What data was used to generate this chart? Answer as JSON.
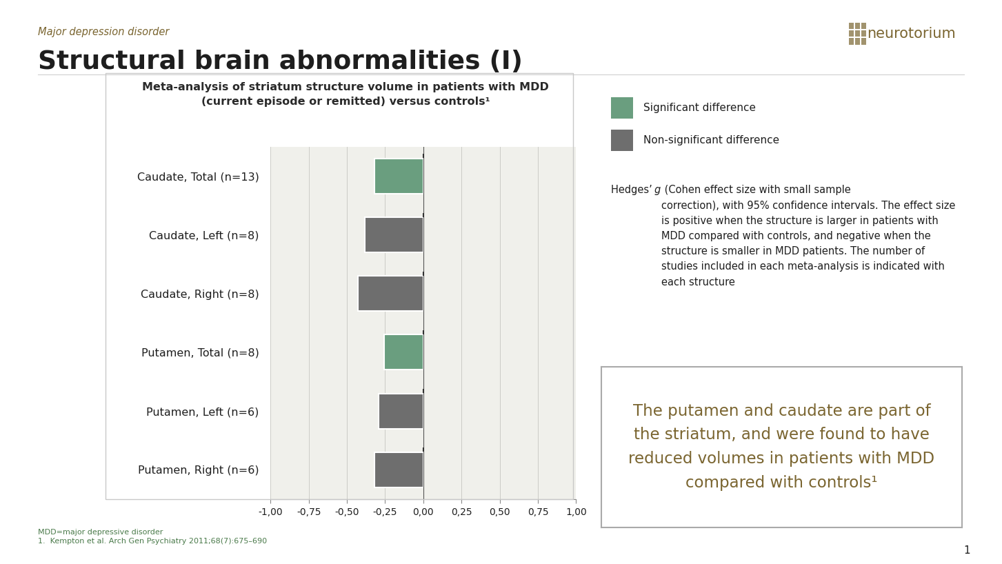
{
  "title_main": "Structural brain abnormalities (I)",
  "title_sub": "Major depression disorder",
  "chart_title_line1": "Meta-analysis of striatum structure volume in patients with MDD",
  "chart_title_line2": "(current episode or remitted) versus controls¹",
  "categories": [
    "Caudate, Total (n=13)",
    "Caudate, Left (n=8)",
    "Caudate, Right (n=8)",
    "Putamen, Total (n=8)",
    "Putamen, Left (n=6)",
    "Putamen, Right (n=6)"
  ],
  "values": [
    -0.32,
    -0.385,
    -0.43,
    -0.255,
    -0.295,
    -0.32
  ],
  "colors": [
    "#6a9e7f",
    "#6e6e6e",
    "#6e6e6e",
    "#6a9e7f",
    "#6e6e6e",
    "#6e6e6e"
  ],
  "color_significant": "#6a9e7f",
  "color_nonsignificant": "#6e6e6e",
  "xlim": [
    -1.0,
    1.0
  ],
  "xticks": [
    -1.0,
    -0.75,
    -0.5,
    -0.25,
    0.0,
    0.25,
    0.5,
    0.75,
    1.0
  ],
  "xtick_labels": [
    "-1,00",
    "-0,75",
    "-0,50",
    "-0,25",
    "0,00",
    "0,25",
    "0,50",
    "0,75",
    "1,00"
  ],
  "legend_sig": "Significant difference",
  "legend_nonsig": "Non-significant difference",
  "description_part1": "Hedges’ ",
  "description_italic": "g",
  "description_part2": " (Cohen effect size with small sample\ncorrection), with 95% confidence intervals. The effect size\nis positive when the structure is larger in patients with\nMDD compared with controls, and negative when the\nstructure is smaller in MDD patients. The number of\nstudies included in each meta-analysis is indicated with\neach structure",
  "callout_text": "The putamen and caudate are part of\nthe striatum, and were found to have\nreduced volumes in patients with MDD\ncompared with controls¹",
  "footnote1": "MDD=major depressive disorder",
  "footnote2": "1.  Kempton et al. Arch Gen Psychiatry 2011;68(7):675–690",
  "bg_color": "#ffffff",
  "chart_bg": "#f0f0eb",
  "border_color": "#cccccc",
  "title_color": "#7a6530",
  "main_title_color": "#1e1e1e",
  "text_color": "#2a2a2a",
  "footnote_color": "#4a7a4a",
  "page_number": "1",
  "logo_text": "neurotorium"
}
